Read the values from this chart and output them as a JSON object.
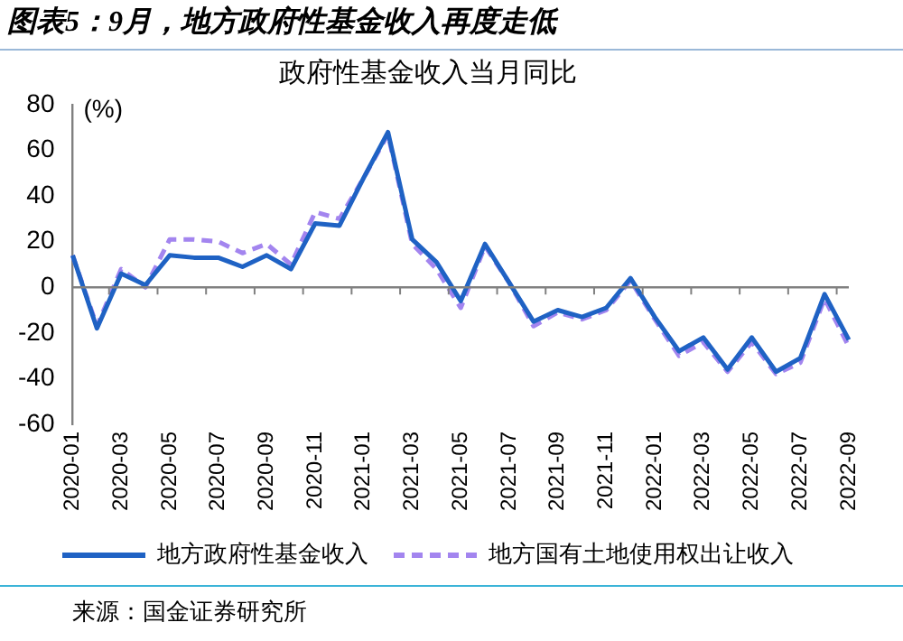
{
  "chart_data": {
    "type": "line",
    "title": "图表5：9月，地方政府性基金收入再度走低",
    "subtitle": "政府性基金收入当月同比",
    "ylabel": "(%)",
    "categories": [
      "2020-01",
      null,
      "2020-03",
      null,
      "2020-05",
      null,
      "2020-07",
      null,
      "2020-09",
      null,
      "2020-11",
      null,
      "2021-01",
      null,
      "2021-03",
      null,
      "2021-05",
      null,
      "2021-07",
      null,
      "2021-09",
      null,
      "2021-11",
      null,
      "2022-01",
      null,
      "2022-03",
      null,
      "2022-05",
      null,
      "2022-07",
      null,
      "2022-09"
    ],
    "series": [
      {
        "name": "地方政府性基金收入",
        "color": "#1f62c4",
        "line_style": "solid",
        "values": [
          14,
          -18,
          6,
          1,
          14,
          13,
          13,
          9,
          14,
          8,
          28,
          27,
          48,
          68,
          21,
          11,
          -6,
          19,
          2,
          -15,
          -10,
          -13,
          -9,
          4,
          -13,
          -28,
          -22,
          -36,
          -22,
          -37,
          -31,
          -3,
          -23
        ]
      },
      {
        "name": "地方国有土地使用权出让收入",
        "color": "#a385ef",
        "line_style": "dashed",
        "values": [
          14,
          -17,
          8,
          0,
          21,
          21,
          20,
          15,
          19,
          10,
          33,
          30,
          48,
          67,
          19,
          8,
          -9,
          18,
          2,
          -17,
          -11,
          -14,
          -10,
          3,
          -14,
          -30,
          -24,
          -37,
          -24,
          -38,
          -33,
          -5,
          -26
        ]
      }
    ],
    "ylim": [
      -60,
      80
    ],
    "yticks": [
      -60,
      -40,
      -20,
      0,
      20,
      40,
      60,
      80
    ],
    "grid": false,
    "legend": "bottom",
    "marker": "none",
    "ref_lines": [
      {
        "axis": "y",
        "value": 0,
        "color": "#808080"
      }
    ],
    "annotations": [
      "来源：国金证券研究所"
    ]
  }
}
